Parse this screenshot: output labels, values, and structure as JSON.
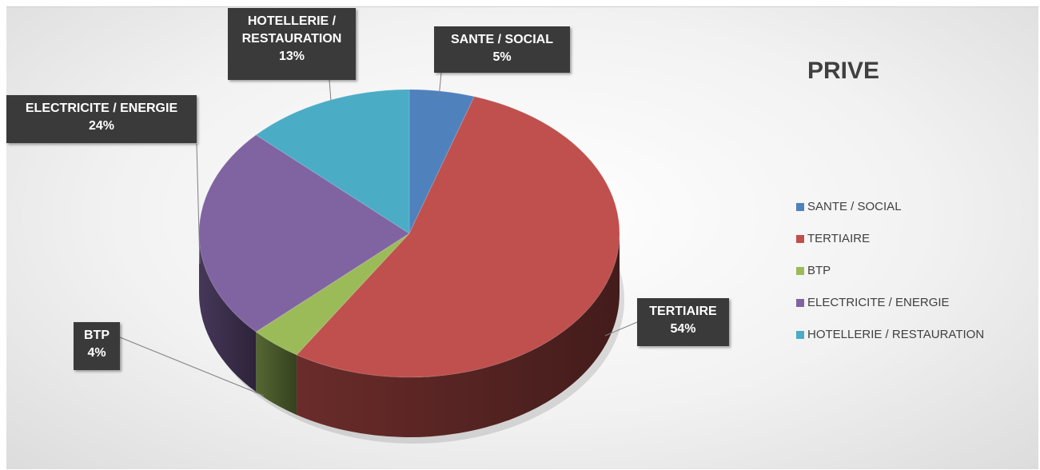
{
  "chart_data": {
    "type": "pie",
    "title": "PRIVE",
    "categories": [
      "SANTE / SOCIAL",
      "TERTIAIRE",
      "BTP",
      "ELECTRICITE / ENERGIE",
      "HOTELLERIE / RESTAURATION"
    ],
    "values": [
      5,
      54,
      4,
      24,
      13
    ],
    "value_labels": [
      "5%",
      "54%",
      "4%",
      "24%",
      "13%"
    ],
    "colors": [
      "#4f81bd",
      "#c0504d",
      "#9bbb59",
      "#8064a2",
      "#4bacc6"
    ],
    "legend": "right"
  }
}
